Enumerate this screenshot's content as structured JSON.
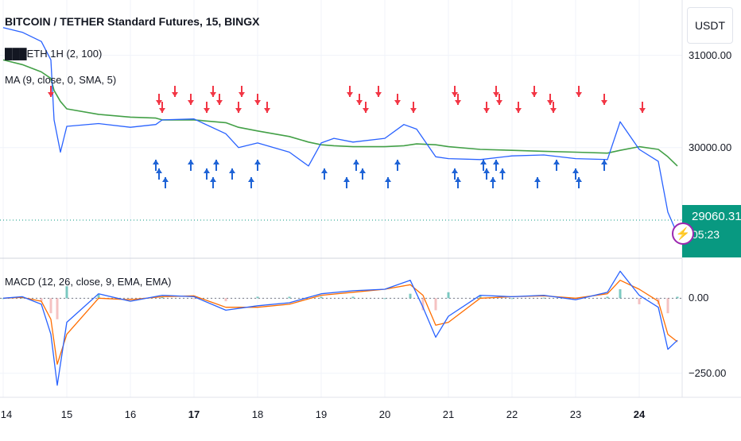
{
  "header": {
    "title": "BITCOIN / TETHER Standard Futures, 15, BINGX",
    "indicator_1": "███ETH 1H (2, 100)",
    "indicator_2": "MA (9, close, 0, SMA, 5)",
    "indicator_3": "MACD (12, 26, close, 9, EMA, EMA)"
  },
  "price_scale": {
    "currency_button": "USDT"
  },
  "last_price": {
    "value": "29060.31",
    "countdown": "05:23"
  },
  "colors": {
    "price_line": "#2962ff",
    "ma_line": "#43a047",
    "macd_line": "#2962ff",
    "signal_line": "#ff6d00",
    "up_arrow": "#1e63d6",
    "down_arrow": "#f23645",
    "last_price_tag": "#089981",
    "alert_icon": "#9c27b0"
  },
  "chart_data": [
    {
      "type": "line",
      "name": "price",
      "y_ticks": [
        "31000.00",
        "30000.00"
      ],
      "ylim": [
        28800,
        31600
      ],
      "x": [
        14,
        14.3,
        14.6,
        14.75,
        14.8,
        14.9,
        15,
        15.5,
        16,
        16.4,
        16.5,
        17,
        17.5,
        17.7,
        18,
        18.5,
        18.8,
        19,
        19.2,
        19.5,
        20,
        20.3,
        20.5,
        20.8,
        21,
        21.5,
        22,
        22.5,
        23,
        23.5,
        23.7,
        24,
        24.3,
        24.45,
        24.6
      ],
      "series": [
        {
          "name": "",
          "values": [
            31300,
            31250,
            31150,
            30950,
            30300,
            29950,
            30230,
            30260,
            30220,
            30250,
            30300,
            30310,
            30150,
            30000,
            30050,
            29950,
            29800,
            30050,
            30100,
            30060,
            30100,
            30250,
            30200,
            29900,
            29880,
            29870,
            29910,
            29920,
            29880,
            29870,
            30280,
            29980,
            29850,
            29300,
            29060
          ]
        },
        {
          "name": "",
          "values": [
            30950,
            30900,
            30820,
            30750,
            30620,
            30500,
            30420,
            30360,
            30330,
            30320,
            30300,
            30300,
            30270,
            30220,
            30180,
            30120,
            30060,
            30030,
            30020,
            30010,
            30010,
            30020,
            30040,
            30030,
            30010,
            29980,
            29970,
            29960,
            29950,
            29940,
            29970,
            30010,
            29980,
            29900,
            29800
          ]
        }
      ]
    },
    {
      "type": "line",
      "name": "macd",
      "y_ticks": [
        "0.00",
        "−250.00"
      ],
      "ylim": [
        -330,
        120
      ],
      "x": [
        14,
        14.3,
        14.6,
        14.75,
        14.85,
        15,
        15.5,
        16,
        16.5,
        17,
        17.5,
        18,
        18.5,
        19,
        19.5,
        20,
        20.4,
        20.6,
        20.8,
        21,
        21.5,
        22,
        22.5,
        23,
        23.5,
        23.7,
        24,
        24.3,
        24.45,
        24.6
      ],
      "series": [
        {
          "name": "",
          "values": [
            0,
            5,
            -20,
            -120,
            -290,
            -80,
            15,
            -10,
            10,
            5,
            -40,
            -25,
            -15,
            15,
            25,
            30,
            60,
            -30,
            -130,
            -60,
            10,
            5,
            10,
            -5,
            20,
            90,
            10,
            -30,
            -170,
            -140
          ]
        },
        {
          "name": "",
          "values": [
            0,
            3,
            -10,
            -70,
            -220,
            -120,
            0,
            -5,
            5,
            8,
            -30,
            -30,
            -20,
            10,
            20,
            30,
            45,
            10,
            -90,
            -80,
            0,
            5,
            8,
            0,
            15,
            60,
            30,
            -10,
            -120,
            -145
          ]
        }
      ]
    }
  ],
  "x_axis": {
    "labels": [
      {
        "text": "14",
        "x": 14,
        "bold": false
      },
      {
        "text": "15",
        "x": 15,
        "bold": false
      },
      {
        "text": "16",
        "x": 16,
        "bold": false
      },
      {
        "text": "17",
        "x": 17,
        "bold": true
      },
      {
        "text": "18",
        "x": 18,
        "bold": false
      },
      {
        "text": "19",
        "x": 19,
        "bold": false
      },
      {
        "text": "20",
        "x": 20,
        "bold": false
      },
      {
        "text": "21",
        "x": 21,
        "bold": false
      },
      {
        "text": "22",
        "x": 22,
        "bold": false
      },
      {
        "text": "23",
        "x": 23,
        "bold": false
      },
      {
        "text": "24",
        "x": 24,
        "bold": true
      }
    ]
  },
  "signals": {
    "sell_x": [
      14.75,
      16.45,
      16.5,
      16.7,
      16.95,
      17.2,
      17.3,
      17.4,
      17.7,
      17.75,
      18,
      18.15,
      19.45,
      19.6,
      19.7,
      19.9,
      20.2,
      20.45,
      21.1,
      21.15,
      21.6,
      21.75,
      21.8,
      22.1,
      22.35,
      22.6,
      22.65,
      23.05,
      23.45,
      24.05
    ],
    "buy_x": [
      16.4,
      16.45,
      16.55,
      16.95,
      17.2,
      17.3,
      17.35,
      17.6,
      17.9,
      18,
      19.05,
      19.4,
      19.55,
      19.65,
      20.05,
      20.2,
      21.1,
      21.15,
      21.55,
      21.6,
      21.7,
      21.75,
      21.85,
      22.4,
      22.7,
      23,
      23.05,
      23.45
    ]
  }
}
